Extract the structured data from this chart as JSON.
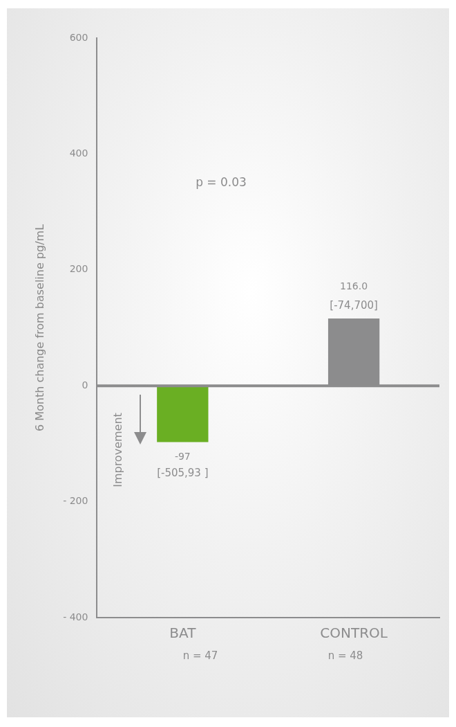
{
  "chart_data": {
    "type": "bar",
    "ylabel": "6 Month change from baseline pg/mL",
    "categories": [
      "BAT",
      "CONTROL"
    ],
    "values": [
      -97,
      116.0
    ],
    "colors": [
      "#6aaf23",
      "#8c8c8d"
    ],
    "value_labels": [
      "-97",
      "116.0"
    ],
    "ylim": [
      -400,
      600
    ],
    "yticks": [
      {
        "value": -400,
        "label": "- 400"
      },
      {
        "value": -200,
        "label": "- 200"
      },
      0,
      200,
      400,
      600
    ],
    "grid": false,
    "legend": false,
    "ref_lines": [
      {
        "axis": "y",
        "value": 0,
        "color": "#8c8c8d"
      }
    ],
    "annotations": [
      "p = 0.03",
      "Improvement",
      {
        "text": "[-505,93 ]",
        "x": "BAT",
        "y": -97
      },
      {
        "text": "[-74,700]",
        "x": "CONTROL",
        "y": 116.0
      },
      "n = 47",
      "n = 48"
    ]
  }
}
